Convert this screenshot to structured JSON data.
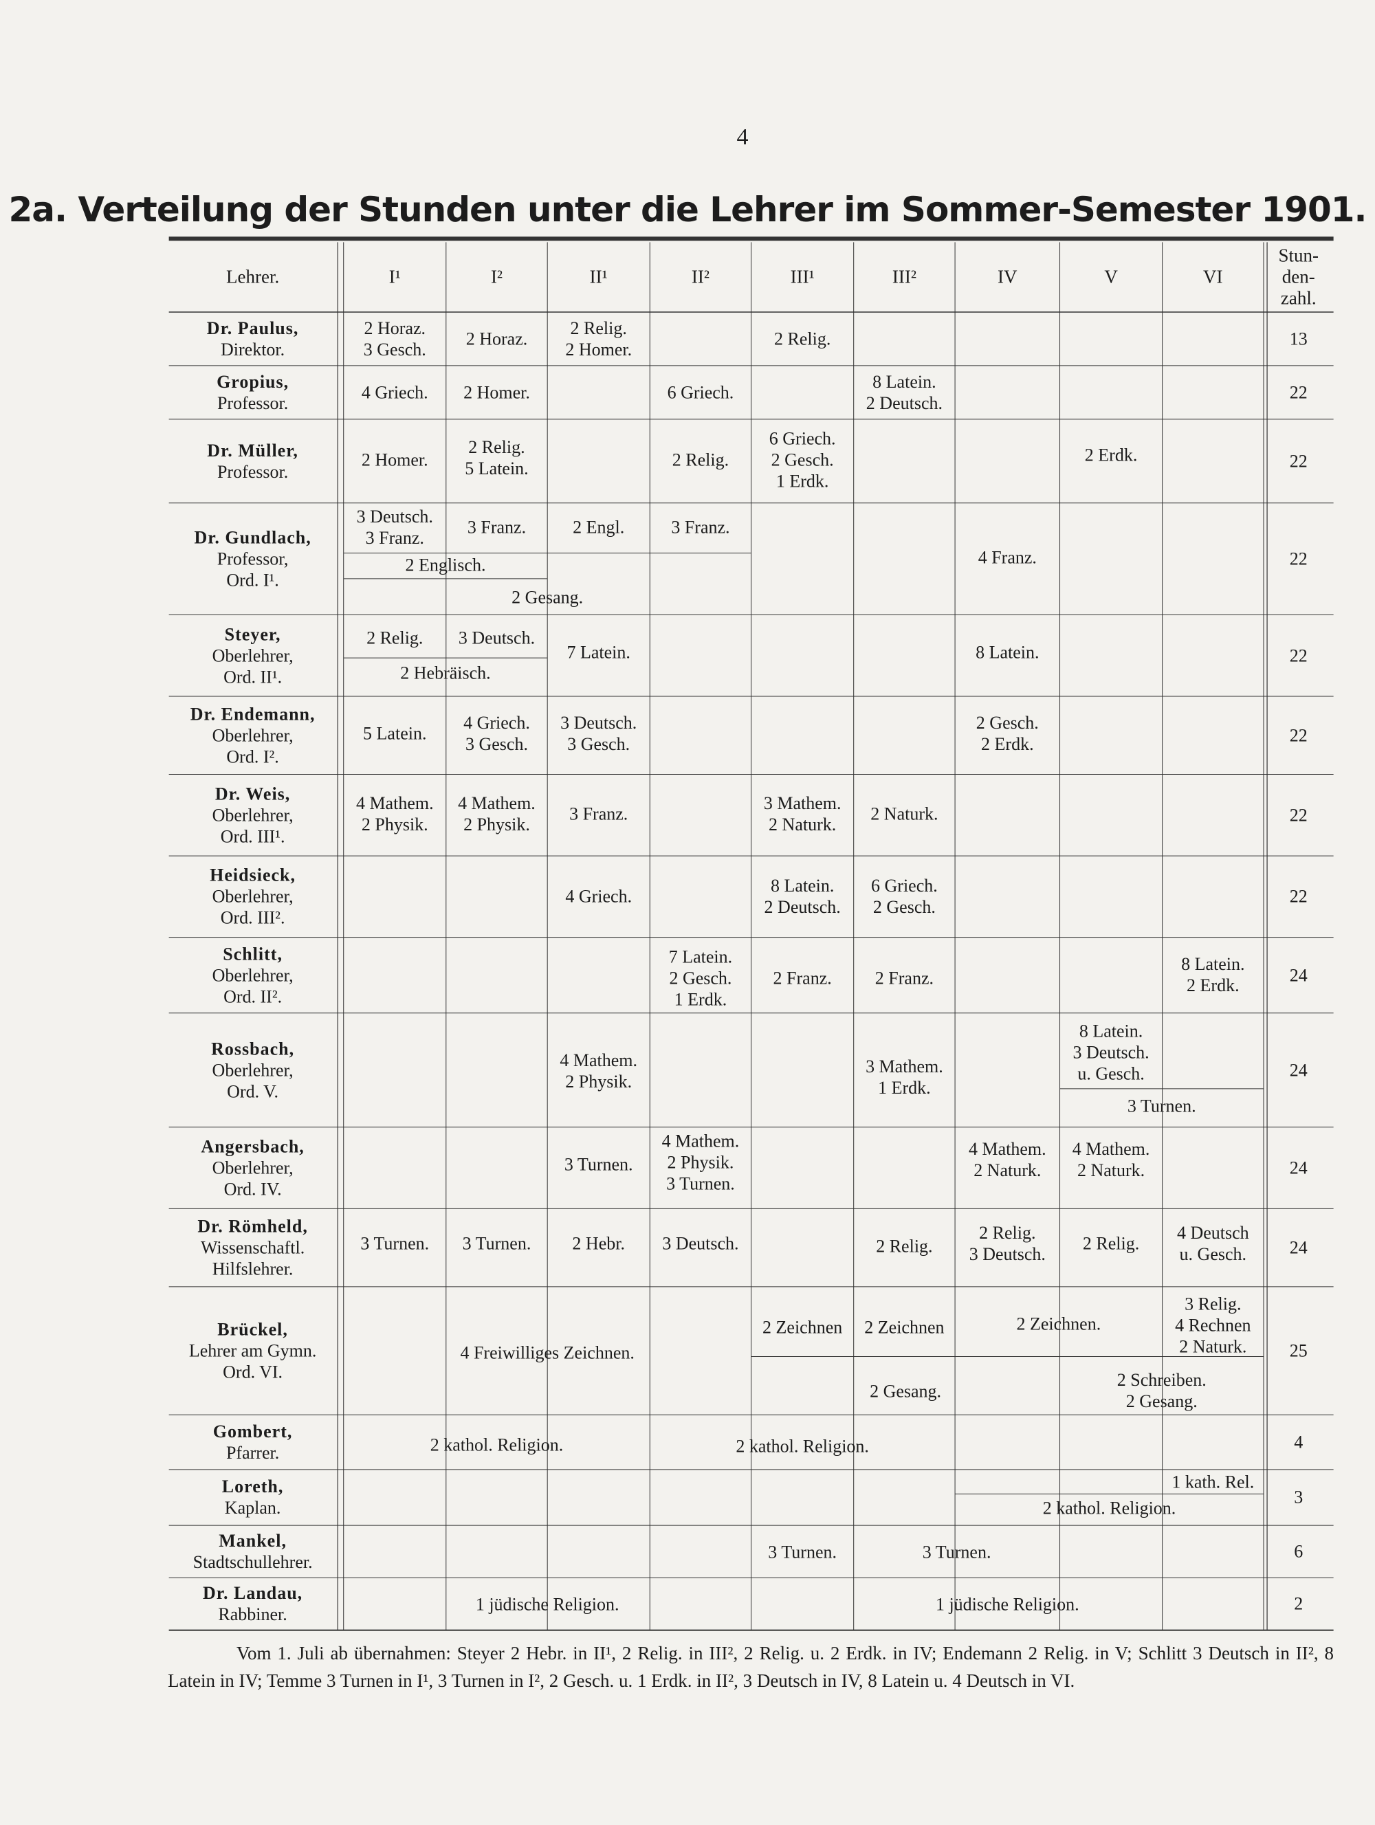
{
  "page_number": "4",
  "title": "2a. Verteilung der Stunden unter die Lehrer im Sommer-Semester 1901.",
  "table": {
    "headers": [
      "Lehrer.",
      "I¹",
      "I²",
      "II¹",
      "II²",
      "III¹",
      "III²",
      "IV",
      "V",
      "VI"
    ],
    "total_header": [
      "Stun-",
      "den-",
      "zahl."
    ],
    "rows": [
      {
        "teacher": [
          "Dr. Paulus,",
          "Direktor."
        ],
        "cells": [
          [
            "2 Horaz.",
            "3 Gesch."
          ],
          [
            "2 Horaz."
          ],
          [
            "2 Relig.",
            "2 Homer."
          ],
          [
            "2 Relig."
          ]
        ],
        "total": 13
      },
      {
        "teacher": [
          "Gropius,",
          "Professor."
        ],
        "cells": [
          [
            "4 Griech."
          ],
          [
            "2 Homer."
          ],
          [
            "6 Griech."
          ],
          [
            "8 Latein.",
            "2 Deutsch."
          ]
        ],
        "total": 22
      },
      {
        "teacher": [
          "Dr. Müller,",
          "Professor."
        ],
        "cells": [
          [
            "2 Homer."
          ],
          [
            "2 Relig.",
            "5 Latein."
          ],
          [
            "2 Relig."
          ],
          [
            "6 Griech.",
            "2 Gesch.",
            "1 Erdk."
          ],
          [
            "2 Erdk."
          ]
        ],
        "total": 22
      },
      {
        "teacher": [
          "Dr. Gundlach,",
          "Professor,",
          "Ord. I¹."
        ],
        "cells": [
          [
            "3 Deutsch.",
            "3 Franz."
          ],
          [
            "3 Franz."
          ],
          [
            "2 Engl."
          ],
          [
            "3 Franz."
          ],
          [
            "2 Englisch."
          ],
          [
            "2 Gesang."
          ],
          [
            "4 Franz."
          ]
        ],
        "total": 22
      },
      {
        "teacher": [
          "Steyer,",
          "Oberlehrer,",
          "Ord. II¹."
        ],
        "cells": [
          [
            "2 Relig."
          ],
          [
            "3 Deutsch."
          ],
          [
            "7 Latein."
          ],
          [
            "2 Hebräisch."
          ],
          [
            "8 Latein."
          ]
        ],
        "total": 22
      },
      {
        "teacher": [
          "Dr. Endemann,",
          "Oberlehrer,",
          "Ord. I²."
        ],
        "cells": [
          [
            "5 Latein."
          ],
          [
            "4 Griech.",
            "3 Gesch."
          ],
          [
            "3 Deutsch.",
            "3 Gesch."
          ],
          [
            "2 Gesch.",
            "2 Erdk."
          ]
        ],
        "total": 22
      },
      {
        "teacher": [
          "Dr. Weis,",
          "Oberlehrer,",
          "Ord. III¹."
        ],
        "cells": [
          [
            "4 Mathem.",
            "2 Physik."
          ],
          [
            "4 Mathem.",
            "2 Physik."
          ],
          [
            "3 Franz."
          ],
          [
            "3 Mathem.",
            "2 Naturk."
          ],
          [
            "2 Naturk."
          ]
        ],
        "total": 22
      },
      {
        "teacher": [
          "Heidsieck,",
          "Oberlehrer,",
          "Ord. III²."
        ],
        "cells": [
          [
            "4 Griech."
          ],
          [
            "8 Latein.",
            "2 Deutsch."
          ],
          [
            "6 Griech.",
            "2 Gesch."
          ]
        ],
        "total": 22
      },
      {
        "teacher": [
          "Schlitt,",
          "Oberlehrer,",
          "Ord. II²."
        ],
        "cells": [
          [
            "7 Latein.",
            "2 Gesch.",
            "1 Erdk."
          ],
          [
            "2 Franz."
          ],
          [
            "2 Franz."
          ],
          [
            "8 Latein.",
            "2 Erdk."
          ]
        ],
        "total": 24
      },
      {
        "teacher": [
          "Rossbach,",
          "Oberlehrer,",
          "Ord. V."
        ],
        "cells": [
          [
            "4 Mathem.",
            "2 Physik."
          ],
          [
            "3 Mathem.",
            "1 Erdk."
          ],
          [
            "8 Latein.",
            "3 Deutsch.",
            "u. Gesch."
          ],
          [
            "3 Turnen."
          ]
        ],
        "total": 24
      },
      {
        "teacher": [
          "Angersbach,",
          "Oberlehrer,",
          "Ord. IV."
        ],
        "cells": [
          [
            "3 Turnen."
          ],
          [
            "4 Mathem.",
            "2 Physik.",
            "3 Turnen."
          ],
          [
            "4 Mathem.",
            "2 Naturk."
          ],
          [
            "4 Mathem.",
            "2 Naturk."
          ]
        ],
        "total": 24
      },
      {
        "teacher": [
          "Dr. Römheld,",
          "Wissenschaftl.",
          "Hilfslehrer."
        ],
        "cells": [
          [
            "3 Turnen."
          ],
          [
            "3 Turnen."
          ],
          [
            "2 Hebr."
          ],
          [
            "3 Deutsch."
          ],
          [
            "2 Relig."
          ],
          [
            "2 Relig.",
            "3 Deutsch."
          ],
          [
            "2 Relig."
          ],
          [
            "4 Deutsch",
            "u. Gesch."
          ]
        ],
        "total": 24
      },
      {
        "teacher": [
          "Brückel,",
          "Lehrer am Gymn.",
          "Ord. VI."
        ],
        "cells": [
          [
            "4 Freiwilliges Zeichnen."
          ],
          [
            "2 Zeichnen"
          ],
          [
            "2 Zeichnen"
          ],
          [
            "2 Zeichnen."
          ],
          [
            "3 Relig.",
            "4 Rechnen",
            "2 Naturk."
          ],
          [
            "2 Gesang."
          ],
          [
            "2 Schreiben.",
            "2 Gesang."
          ]
        ],
        "total": 25
      },
      {
        "teacher": [
          "Gombert,",
          "Pfarrer."
        ],
        "cells": [
          [
            "2 kathol. Religion."
          ],
          [
            "2 kathol. Religion."
          ]
        ],
        "total": 4
      },
      {
        "teacher": [
          "Loreth,",
          "Kaplan."
        ],
        "cells": [
          [
            "1 kath. Rel."
          ],
          [
            "2 kathol. Religion."
          ]
        ],
        "total": 3
      },
      {
        "teacher": [
          "Mankel,",
          "Stadtschullehrer."
        ],
        "cells": [
          [
            "3 Turnen."
          ],
          [
            "3 Turnen."
          ]
        ],
        "total": 6
      },
      {
        "teacher": [
          "Dr. Landau,",
          "Rabbiner."
        ],
        "cells": [
          [
            "1 jüdische Religion."
          ],
          [
            "1 jüdische Religion."
          ]
        ],
        "total": 2
      }
    ]
  },
  "footnote": "Vom 1. Juli ab übernahmen: Steyer 2 Hebr. in II¹, 2 Relig. in III², 2 Relig. u. 2 Erdk. in IV; Endemann 2 Relig. in V; Schlitt 3 Deutsch in II², 8 Latein in IV; Temme 3 Turnen in I¹, 3 Turnen in I², 2 Gesch. u. 1 Erdk. in II², 3 Deutsch in IV, 8 Latein u. 4 Deutsch in VI."
}
